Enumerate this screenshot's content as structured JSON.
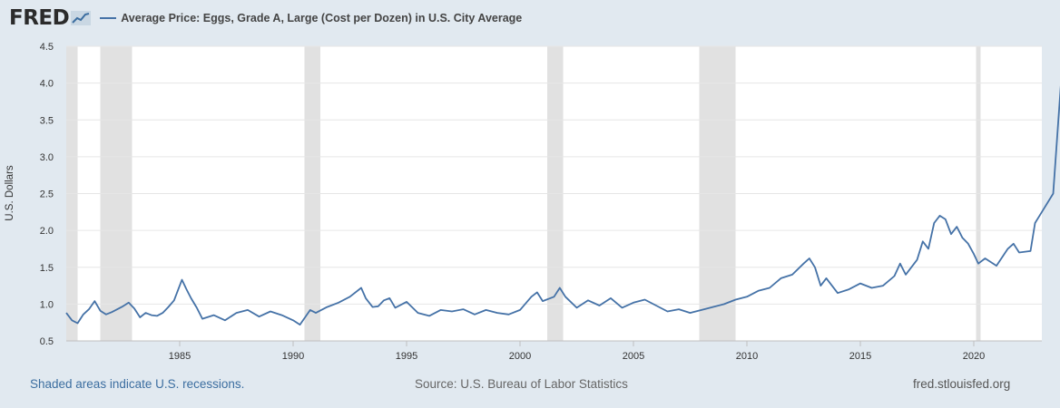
{
  "header": {
    "logo_text": "FRED",
    "legend_label": "Average Price: Eggs, Grade A, Large (Cost per Dozen) in U.S. City Average",
    "legend_color": "#4572a7"
  },
  "footer": {
    "recession_note": "Shaded areas indicate U.S. recessions.",
    "source": "Source: U.S. Bureau of Labor Statistics",
    "site": "fred.stlouisfed.org"
  },
  "chart_data": {
    "type": "line",
    "title": "Average Price: Eggs, Grade A, Large (Cost per Dozen) in U.S. City Average",
    "xlabel": "",
    "ylabel": "U.S. Dollars",
    "xlim": [
      1980.0,
      2023.0
    ],
    "ylim": [
      0.5,
      4.5
    ],
    "x_ticks": [
      "1985",
      "1990",
      "1995",
      "2000",
      "2005",
      "2010",
      "2015",
      "2020"
    ],
    "y_ticks": [
      "0.5",
      "1.0",
      "1.5",
      "2.0",
      "2.5",
      "3.0",
      "3.5",
      "4.0",
      "4.5"
    ],
    "recessions": [
      [
        1980.0,
        1980.5
      ],
      [
        1981.5,
        1982.9
      ],
      [
        1990.5,
        1991.2
      ],
      [
        2001.2,
        2001.9
      ],
      [
        2007.9,
        2009.5
      ],
      [
        2020.1,
        2020.3
      ]
    ],
    "recession_color": "#e1e1e1",
    "line_color": "#4572a7",
    "series": [
      {
        "name": "Average Price: Eggs, Grade A, Large (Cost per Dozen) in U.S. City Average",
        "points": [
          [
            1980.0,
            0.88
          ],
          [
            1980.25,
            0.78
          ],
          [
            1980.5,
            0.74
          ],
          [
            1980.75,
            0.86
          ],
          [
            1981.0,
            0.93
          ],
          [
            1981.25,
            1.04
          ],
          [
            1981.5,
            0.91
          ],
          [
            1981.75,
            0.86
          ],
          [
            1982.0,
            0.89
          ],
          [
            1982.25,
            0.93
          ],
          [
            1982.5,
            0.97
          ],
          [
            1982.75,
            1.02
          ],
          [
            1983.0,
            0.94
          ],
          [
            1983.25,
            0.82
          ],
          [
            1983.5,
            0.88
          ],
          [
            1983.75,
            0.85
          ],
          [
            1984.0,
            0.84
          ],
          [
            1984.25,
            0.88
          ],
          [
            1984.5,
            0.96
          ],
          [
            1984.75,
            1.05
          ],
          [
            1985.0,
            1.25
          ],
          [
            1985.1,
            1.33
          ],
          [
            1985.3,
            1.2
          ],
          [
            1985.5,
            1.08
          ],
          [
            1985.75,
            0.95
          ],
          [
            1986.0,
            0.8
          ],
          [
            1986.5,
            0.85
          ],
          [
            1987.0,
            0.78
          ],
          [
            1987.5,
            0.88
          ],
          [
            1988.0,
            0.92
          ],
          [
            1988.5,
            0.83
          ],
          [
            1989.0,
            0.9
          ],
          [
            1989.5,
            0.85
          ],
          [
            1990.0,
            0.78
          ],
          [
            1990.3,
            0.72
          ],
          [
            1990.75,
            0.92
          ],
          [
            1991.0,
            0.88
          ],
          [
            1991.5,
            0.96
          ],
          [
            1992.0,
            1.02
          ],
          [
            1992.5,
            1.1
          ],
          [
            1993.0,
            1.22
          ],
          [
            1993.2,
            1.08
          ],
          [
            1993.5,
            0.96
          ],
          [
            1993.75,
            0.97
          ],
          [
            1994.0,
            1.05
          ],
          [
            1994.25,
            1.08
          ],
          [
            1994.5,
            0.95
          ],
          [
            1995.0,
            1.03
          ],
          [
            1995.5,
            0.88
          ],
          [
            1996.0,
            0.84
          ],
          [
            1996.5,
            0.92
          ],
          [
            1997.0,
            0.9
          ],
          [
            1997.5,
            0.93
          ],
          [
            1998.0,
            0.86
          ],
          [
            1998.5,
            0.92
          ],
          [
            1999.0,
            0.88
          ],
          [
            1999.5,
            0.86
          ],
          [
            2000.0,
            0.92
          ],
          [
            2000.5,
            1.1
          ],
          [
            2000.75,
            1.16
          ],
          [
            2001.0,
            1.04
          ],
          [
            2001.5,
            1.1
          ],
          [
            2001.75,
            1.22
          ],
          [
            2002.0,
            1.1
          ],
          [
            2002.5,
            0.95
          ],
          [
            2003.0,
            1.05
          ],
          [
            2003.5,
            0.98
          ],
          [
            2004.0,
            1.08
          ],
          [
            2004.5,
            0.95
          ],
          [
            2005.0,
            1.02
          ],
          [
            2005.5,
            1.06
          ],
          [
            2006.0,
            0.98
          ],
          [
            2006.5,
            0.9
          ],
          [
            2007.0,
            0.93
          ],
          [
            2007.5,
            0.88
          ],
          [
            2008.0,
            0.92
          ],
          [
            2008.5,
            0.96
          ],
          [
            2009.0,
            1.0
          ],
          [
            2009.5,
            1.06
          ],
          [
            2010.0,
            1.1
          ],
          [
            2010.5,
            1.18
          ],
          [
            2011.0,
            1.22
          ],
          [
            2011.5,
            1.35
          ],
          [
            2012.0,
            1.4
          ],
          [
            2012.5,
            1.55
          ],
          [
            2012.75,
            1.62
          ],
          [
            2013.0,
            1.5
          ],
          [
            2013.25,
            1.25
          ],
          [
            2013.5,
            1.35
          ],
          [
            2014.0,
            1.15
          ],
          [
            2014.5,
            1.2
          ],
          [
            2015.0,
            1.28
          ],
          [
            2015.5,
            1.22
          ],
          [
            2016.0,
            1.25
          ],
          [
            2016.5,
            1.38
          ],
          [
            2016.75,
            1.55
          ],
          [
            2017.0,
            1.4
          ],
          [
            2017.5,
            1.6
          ],
          [
            2017.75,
            1.85
          ],
          [
            2018.0,
            1.75
          ],
          [
            2018.25,
            2.1
          ],
          [
            2018.5,
            2.2
          ],
          [
            2018.75,
            2.15
          ],
          [
            2019.0,
            1.95
          ],
          [
            2019.25,
            2.05
          ],
          [
            2019.5,
            1.9
          ],
          [
            2019.75,
            1.82
          ],
          [
            2020.0,
            1.68
          ],
          [
            2020.2,
            1.55
          ],
          [
            2020.5,
            1.62
          ],
          [
            2021.0,
            1.52
          ],
          [
            2021.5,
            1.75
          ],
          [
            2021.75,
            1.82
          ],
          [
            2022.0,
            1.7
          ],
          [
            2022.5,
            1.72
          ],
          [
            2022.7,
            2.1
          ],
          [
            2023.0,
            2.25
          ],
          [
            2023.5,
            2.5
          ],
          [
            2023.9,
            4.25
          ]
        ]
      }
    ]
  }
}
